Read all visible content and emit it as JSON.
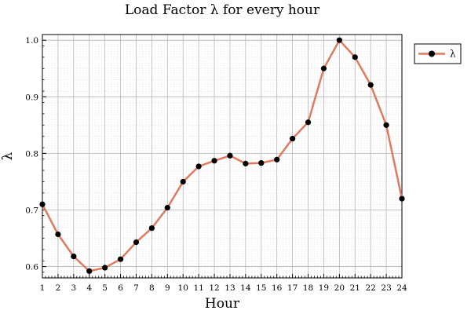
{
  "chart_data": {
    "type": "line",
    "title": "Load Factor λ for every hour",
    "xlabel": "Hour",
    "ylabel": "λ",
    "x": [
      1,
      2,
      3,
      4,
      5,
      6,
      7,
      8,
      9,
      10,
      11,
      12,
      13,
      14,
      15,
      16,
      17,
      18,
      19,
      20,
      21,
      22,
      23,
      24
    ],
    "series": [
      {
        "name": "λ",
        "color": "#e07a5f",
        "marker_color": "#000000",
        "values": [
          0.71,
          0.657,
          0.618,
          0.592,
          0.598,
          0.613,
          0.643,
          0.668,
          0.704,
          0.75,
          0.777,
          0.787,
          0.796,
          0.782,
          0.783,
          0.789,
          0.826,
          0.855,
          0.95,
          1.0,
          0.97,
          0.921,
          0.85,
          0.72
        ]
      }
    ],
    "xlim": [
      1,
      24
    ],
    "ylim": [
      0.58,
      1.01
    ],
    "xticks": [
      "1",
      "2",
      "3",
      "4",
      "5",
      "6",
      "7",
      "8",
      "9",
      "10",
      "11",
      "12",
      "13",
      "14",
      "15",
      "16",
      "17",
      "18",
      "19",
      "20",
      "21",
      "22",
      "23",
      "24"
    ],
    "yticks": [
      "0.6",
      "0.7",
      "0.8",
      "0.9",
      "1.0"
    ],
    "ytick_values": [
      0.6,
      0.7,
      0.8,
      0.9,
      1.0
    ],
    "grid": true,
    "minor_grid": true,
    "legend_position": "top-right, outside plot"
  }
}
